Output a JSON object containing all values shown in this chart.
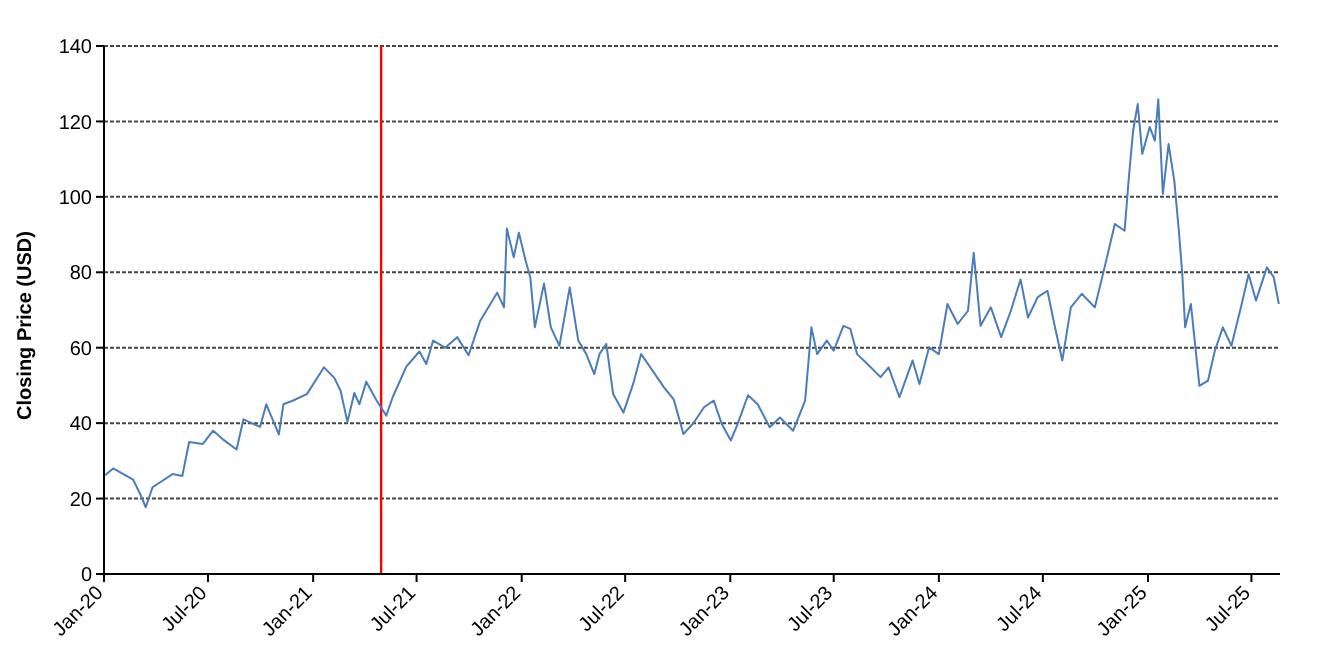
{
  "chart_data": {
    "type": "line",
    "ylabel": "Closing Price (USD)",
    "x": [
      "2020-01-03",
      "2020-01-17",
      "2020-02-21",
      "2020-03-05",
      "2020-03-14",
      "2020-03-26",
      "2020-04-30",
      "2020-05-17",
      "2020-05-29",
      "2020-06-22",
      "2020-07-10",
      "2020-07-27",
      "2020-08-20",
      "2020-09-01",
      "2020-09-30",
      "2020-10-11",
      "2020-11-02",
      "2020-11-10",
      "2020-11-27",
      "2020-12-21",
      "2021-01-20",
      "2021-02-07",
      "2021-02-18",
      "2021-03-02",
      "2021-03-14",
      "2021-03-23",
      "2021-04-04",
      "2021-04-22",
      "2021-05-09",
      "2021-05-20",
      "2021-06-13",
      "2021-07-06",
      "2021-07-18",
      "2021-07-30",
      "2021-08-20",
      "2021-09-10",
      "2021-09-30",
      "2021-10-20",
      "2021-11-19",
      "2021-12-01",
      "2021-12-06",
      "2021-12-18",
      "2021-12-27",
      "2022-01-08",
      "2022-01-16",
      "2022-01-24",
      "2022-02-09",
      "2022-02-21",
      "2022-03-08",
      "2022-03-26",
      "2022-04-10",
      "2022-04-24",
      "2022-05-08",
      "2022-05-17",
      "2022-05-29",
      "2022-06-10",
      "2022-06-28",
      "2022-07-15",
      "2022-07-29",
      "2022-08-14",
      "2022-09-07",
      "2022-09-24",
      "2022-10-11",
      "2022-10-29",
      "2022-11-16",
      "2022-12-03",
      "2022-12-17",
      "2023-01-02",
      "2023-01-14",
      "2023-02-01",
      "2023-02-18",
      "2023-03-11",
      "2023-03-29",
      "2023-04-21",
      "2023-05-12",
      "2023-05-23",
      "2023-06-02",
      "2023-06-19",
      "2023-07-01",
      "2023-07-18",
      "2023-07-30",
      "2023-08-11",
      "2023-08-29",
      "2023-09-21",
      "2023-10-05",
      "2023-10-24",
      "2023-11-16",
      "2023-11-28",
      "2023-12-15",
      "2024-01-01",
      "2024-01-16",
      "2024-02-03",
      "2024-02-21",
      "2024-03-02",
      "2024-03-14",
      "2024-04-01",
      "2024-04-19",
      "2024-05-06",
      "2024-05-23",
      "2024-06-05",
      "2024-06-22",
      "2024-07-09",
      "2024-07-21",
      "2024-08-04",
      "2024-08-19",
      "2024-09-07",
      "2024-09-30",
      "2024-10-17",
      "2024-11-04",
      "2024-11-21",
      "2024-11-29",
      "2024-12-06",
      "2024-12-14",
      "2024-12-22",
      "2025-01-04",
      "2025-01-13",
      "2025-01-19",
      "2025-01-27",
      "2025-02-06",
      "2025-02-16",
      "2025-02-24",
      "2025-03-02",
      "2025-03-07",
      "2025-03-17",
      "2025-04-01",
      "2025-04-16",
      "2025-04-28",
      "2025-05-12",
      "2025-05-27",
      "2025-06-14",
      "2025-06-26",
      "2025-07-09",
      "2025-07-28",
      "2025-08-09",
      "2025-08-18"
    ],
    "series": [
      {
        "color": "#4a7ebb",
        "values": [
          26.2,
          28,
          25,
          21,
          17.7,
          23,
          26.5,
          26,
          35,
          34.5,
          38,
          35.7,
          33,
          41,
          39,
          45,
          37,
          45,
          46,
          47.7,
          54.8,
          52,
          48.6,
          40.3,
          48,
          45,
          51,
          46,
          42,
          46.8,
          55,
          59,
          55.7,
          61.9,
          60,
          62.8,
          58,
          67,
          74.6,
          70.7,
          91.6,
          84,
          90.5,
          83,
          78.7,
          65.4,
          77,
          65.4,
          60.5,
          76,
          61.9,
          58.3,
          53,
          58.3,
          61,
          47.7,
          42.8,
          50.4,
          58.3,
          54.8,
          49.5,
          46.3,
          37.1,
          40.1,
          44.2,
          46,
          39.8,
          35.4,
          39.8,
          47.4,
          45,
          38.9,
          41.5,
          38,
          46,
          65.4,
          58.3,
          61.9,
          59.2,
          65.8,
          65,
          58.3,
          55.7,
          52.2,
          54.8,
          46.9,
          56.6,
          50.4,
          60.1,
          58.3,
          71.6,
          66.3,
          69.8,
          85.2,
          65.8,
          70.7,
          62.8,
          69.8,
          78.1,
          68,
          73.4,
          75.1,
          66.3,
          56.6,
          70.7,
          74.3,
          70.7,
          81.3,
          92.8,
          91,
          106,
          117.6,
          124.6,
          111.4,
          118.5,
          114.9,
          125.9,
          100.8,
          114,
          104.3,
          91,
          79.5,
          65.4,
          71.6,
          49.9,
          51.3,
          59.2,
          65.4,
          60.5,
          71.6,
          79.5,
          72.5,
          81.3,
          78.7,
          71.6
        ]
      }
    ],
    "xlim": [
      "2020-01-01",
      "2025-08-20"
    ],
    "xticks": [
      {
        "value": "2020-01-01",
        "label": "Jan-20"
      },
      {
        "value": "2020-07-01",
        "label": "Jul-20"
      },
      {
        "value": "2021-01-01",
        "label": "Jan-21"
      },
      {
        "value": "2021-07-01",
        "label": "Jul-21"
      },
      {
        "value": "2022-01-01",
        "label": "Jan-22"
      },
      {
        "value": "2022-07-01",
        "label": "Jul-22"
      },
      {
        "value": "2023-01-01",
        "label": "Jan-23"
      },
      {
        "value": "2023-07-01",
        "label": "Jul-23"
      },
      {
        "value": "2024-01-01",
        "label": "Jan-24"
      },
      {
        "value": "2024-07-01",
        "label": "Jul-24"
      },
      {
        "value": "2025-01-01",
        "label": "Jan-25"
      },
      {
        "value": "2025-07-01",
        "label": "Jul-25"
      }
    ],
    "ylim": [
      0,
      140
    ],
    "yticks": [
      0,
      20,
      40,
      60,
      80,
      100,
      120,
      140
    ],
    "grid": "y",
    "legend": false,
    "marker": "none",
    "line_style": "solid",
    "ref_lines": [
      {
        "axis": "x",
        "value": "2021-04-30",
        "color": "#ff0000"
      }
    ]
  }
}
